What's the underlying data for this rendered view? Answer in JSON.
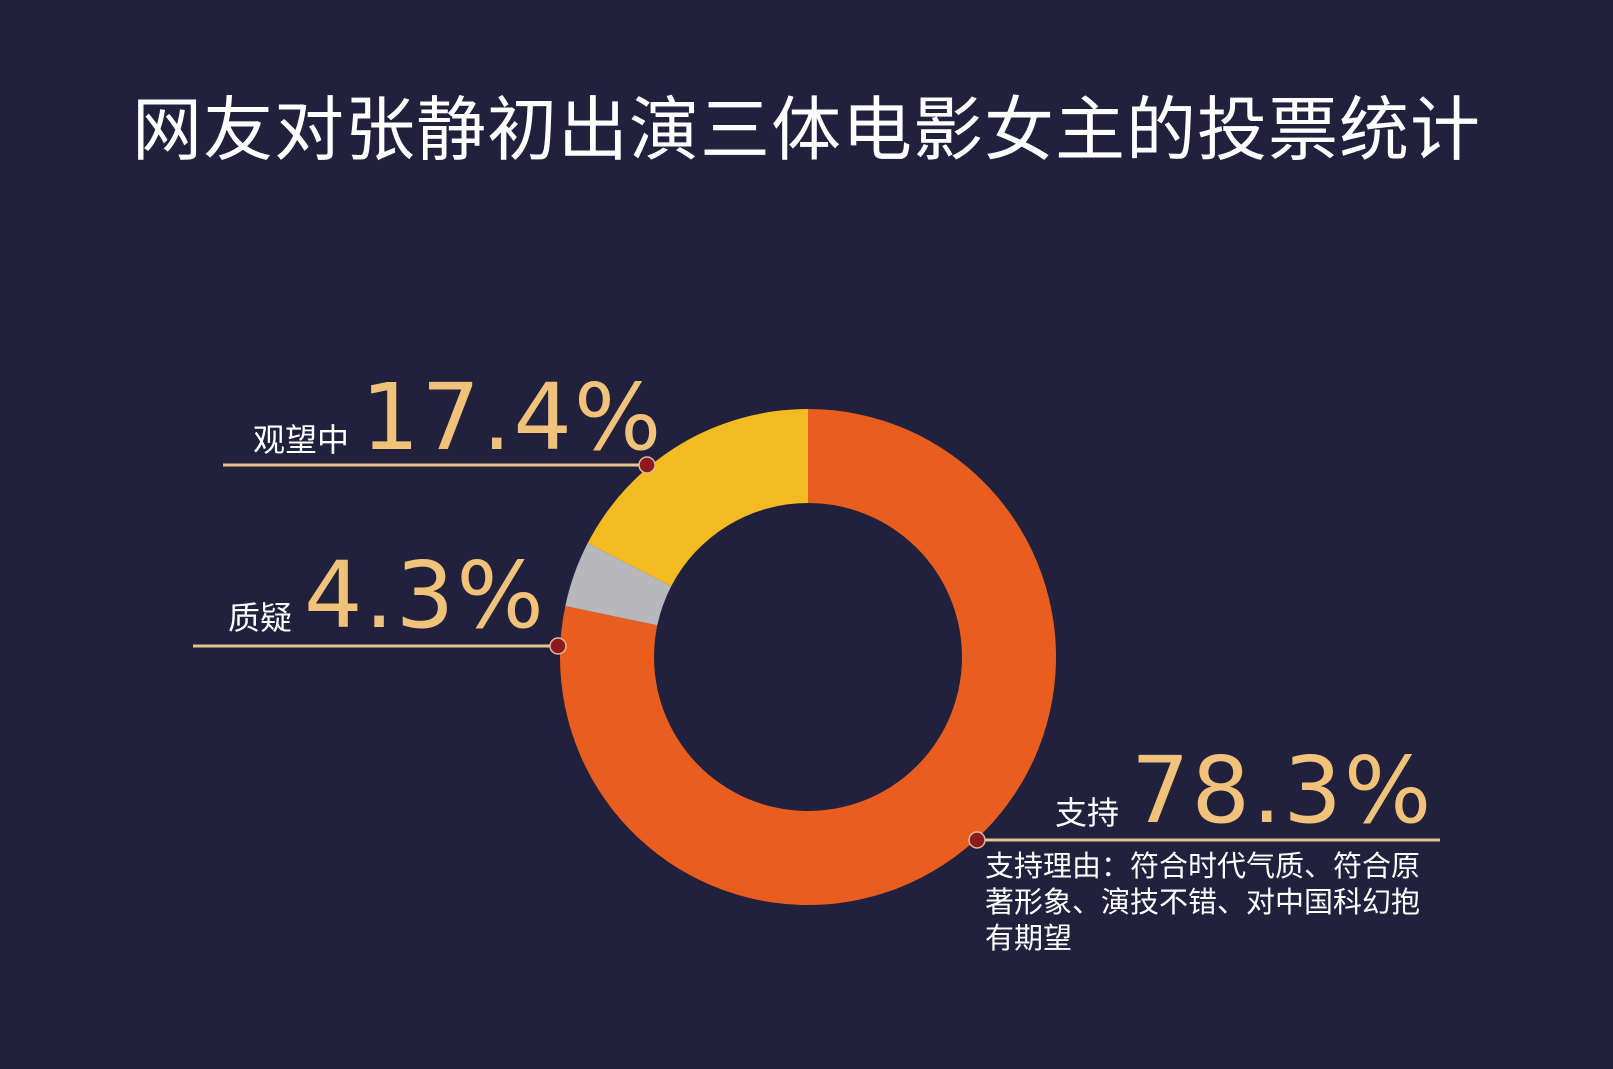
{
  "title": "网友对张静初出演三体电影女主的投票统计",
  "colors": {
    "background": "#22213d",
    "support": "#e95e1f",
    "watching": "#f3bb22",
    "doubt": "#b8b7bc",
    "leader_line": "#e7c48c",
    "marker": "#8b1a1a",
    "value_text": "#f0c27a"
  },
  "chart_data": {
    "type": "pie",
    "donut": true,
    "start": "12 o'clock",
    "direction": "clockwise",
    "slices": [
      {
        "category": "支持",
        "value": 78.3,
        "label": "78.3%",
        "color": "#e95e1f"
      },
      {
        "category": "质疑",
        "value": 4.3,
        "label": "4.3%",
        "color": "#b8b7bc"
      },
      {
        "category": "观望中",
        "value": 17.4,
        "label": "17.4%",
        "color": "#f3bb22"
      }
    ],
    "annotation": "支持理由：符合时代气质、符合原著形象、演技不错、对中国科幻抱有期望"
  }
}
